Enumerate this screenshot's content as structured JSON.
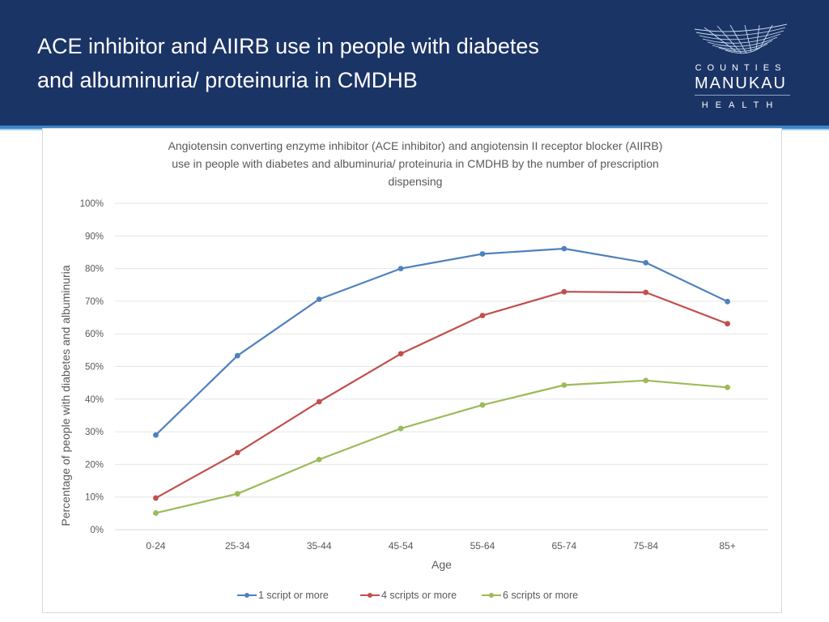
{
  "slide": {
    "title_line1": "ACE inhibitor and AIIRB use in people with diabetes",
    "title_line2": "and albuminuria/ proteinuria in CMDHB"
  },
  "logo": {
    "line1": "COUNTIES",
    "line2": "MANUKAU",
    "line3": "HEALTH"
  },
  "colors": {
    "header_bg": "#1b3466",
    "series": [
      "#4f81bd",
      "#c0504d",
      "#9bbb59"
    ]
  },
  "chart_data": {
    "type": "line",
    "title_lines": [
      "Angiotensin converting enzyme inhibitor (ACE inhibitor) and angiotensin II receptor blocker (AIIRB)",
      "use in people with diabetes and albuminuria/ proteinuria in CMDHB  by the number of  prescription",
      "dispensing"
    ],
    "xlabel": "Age",
    "ylabel": "Percentage of people with diabetes and albuminuria",
    "categories": [
      "0-24",
      "25-34",
      "35-44",
      "45-54",
      "55-64",
      "65-74",
      "75-84",
      "85+"
    ],
    "ylim": [
      0,
      100
    ],
    "yticks": [
      "0%",
      "10%",
      "20%",
      "30%",
      "40%",
      "50%",
      "60%",
      "70%",
      "80%",
      "90%",
      "100%"
    ],
    "grid": true,
    "legend_position": "bottom",
    "series": [
      {
        "name": "1 script or more",
        "color": "#4f81bd",
        "values": [
          29,
          53.3,
          70.6,
          80,
          84.5,
          86.1,
          81.8,
          69.9
        ]
      },
      {
        "name": "4 scripts or more",
        "color": "#c0504d",
        "values": [
          9.7,
          23.6,
          39.2,
          53.9,
          65.6,
          72.9,
          72.7,
          63.1
        ]
      },
      {
        "name": "6 scripts or more",
        "color": "#9bbb59",
        "values": [
          5.1,
          11,
          21.5,
          31,
          38.2,
          44.3,
          45.7,
          43.6
        ]
      }
    ]
  }
}
